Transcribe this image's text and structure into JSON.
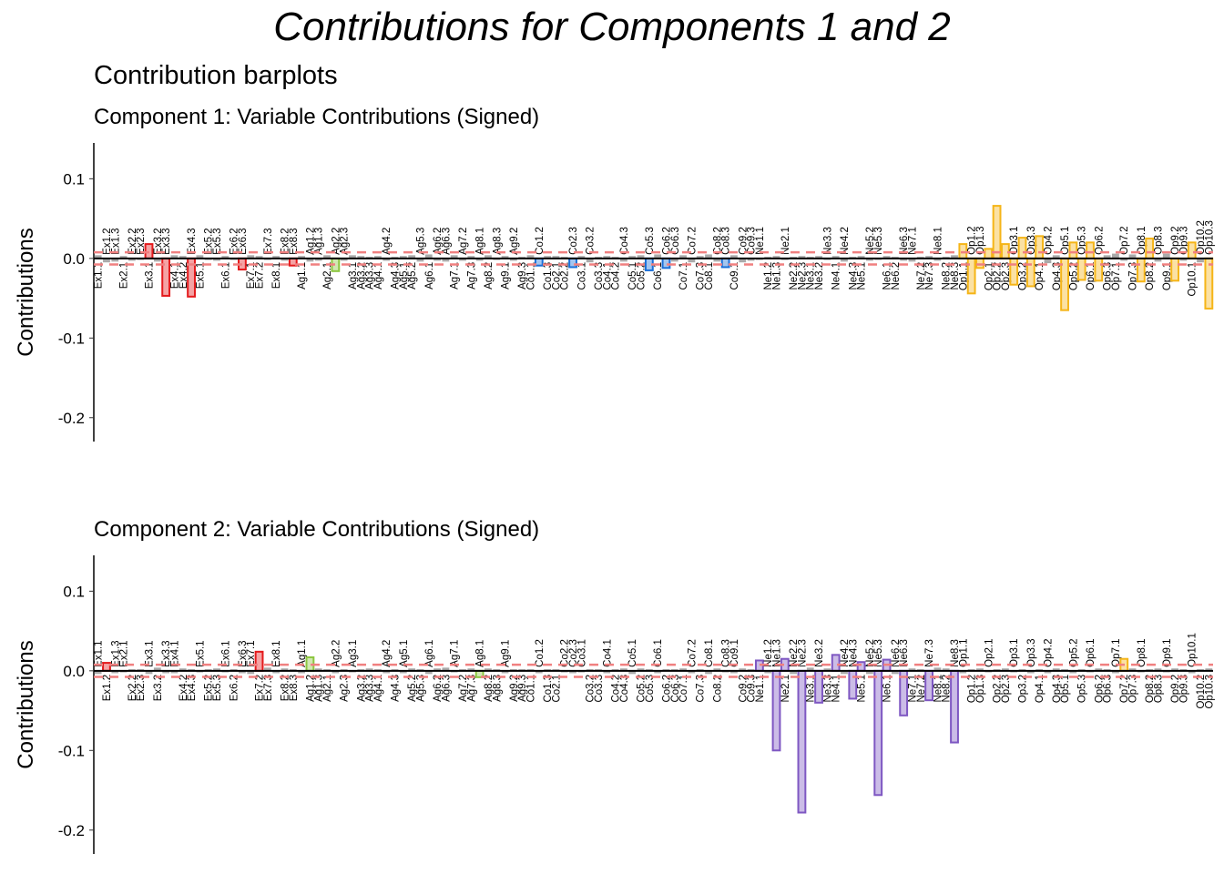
{
  "title": "Contributions for Components 1 and 2",
  "subtitle": "Contribution barplots",
  "chart_data": [
    {
      "type": "bar",
      "title": "Component 1: Variable Contributions (Signed)",
      "ylabel": "Contributions",
      "categories": [
        "Ex1.1",
        "Ex1.2",
        "Ex1.3",
        "Ex2.1",
        "Ex2.2",
        "Ex2.3",
        "Ex3.1",
        "Ex3.2",
        "Ex3.3",
        "Ex4.1",
        "Ex4.2",
        "Ex4.3",
        "Ex5.1",
        "Ex5.2",
        "Ex5.3",
        "Ex6.1",
        "Ex6.2",
        "Ex6.3",
        "Ex7.1",
        "Ex7.2",
        "Ex7.3",
        "Ex8.1",
        "Ex8.2",
        "Ex8.3",
        "Ag1.1",
        "Ag1.2",
        "Ag1.3",
        "Ag2.1",
        "Ag2.2",
        "Ag2.3",
        "Ag3.1",
        "Ag3.2",
        "Ag3.3",
        "Ag4.1",
        "Ag4.2",
        "Ag4.3",
        "Ag5.1",
        "Ag5.2",
        "Ag5.3",
        "Ag6.1",
        "Ag6.2",
        "Ag6.3",
        "Ag7.1",
        "Ag7.2",
        "Ag7.3",
        "Ag8.1",
        "Ag8.2",
        "Ag8.3",
        "Ag9.1",
        "Ag9.2",
        "Ag9.3",
        "Co1.1",
        "Co1.2",
        "Co1.3",
        "Co2.1",
        "Co2.2",
        "Co2.3",
        "Co3.1",
        "Co3.2",
        "Co3.3",
        "Co4.1",
        "Co4.2",
        "Co4.3",
        "Co5.1",
        "Co5.2",
        "Co5.3",
        "Co6.1",
        "Co6.2",
        "Co6.3",
        "Co7.1",
        "Co7.2",
        "Co7.3",
        "Co8.1",
        "Co8.2",
        "Co8.3",
        "Co9.1",
        "Co9.2",
        "Co9.3",
        "Ne1.1",
        "Ne1.2",
        "Ne1.3",
        "Ne2.1",
        "Ne2.2",
        "Ne2.3",
        "Ne3.1",
        "Ne3.2",
        "Ne3.3",
        "Ne4.1",
        "Ne4.2",
        "Ne4.3",
        "Ne5.1",
        "Ne5.2",
        "Ne5.3",
        "Ne6.1",
        "Ne6.2",
        "Ne6.3",
        "Ne7.1",
        "Ne7.2",
        "Ne7.3",
        "Ne8.1",
        "Ne8.2",
        "Ne8.3",
        "Op1.1",
        "Op1.2",
        "Op1.3",
        "Op2.1",
        "Op2.2",
        "Op2.3",
        "Op3.1",
        "Op3.2",
        "Op3.3",
        "Op4.1",
        "Op4.2",
        "Op4.3",
        "Op5.1",
        "Op5.2",
        "Op5.3",
        "Op6.1",
        "Op6.2",
        "Op6.3",
        "Op7.1",
        "Op7.2",
        "Op7.3",
        "Op8.1",
        "Op8.2",
        "Op8.3",
        "Op9.1",
        "Op9.2",
        "Op9.3",
        "Op10.1",
        "Op10.2",
        "Op10.3"
      ],
      "values": [
        0.004,
        -0.005,
        -0.004,
        0.003,
        -0.003,
        -0.002,
        0.018,
        -0.004,
        -0.047,
        0.004,
        0.003,
        -0.048,
        0.004,
        -0.002,
        -0.003,
        0.003,
        -0.002,
        -0.014,
        0.004,
        0.003,
        -0.002,
        0.003,
        -0.003,
        -0.009,
        0.003,
        -0.004,
        -0.003,
        0.004,
        -0.016,
        -0.003,
        0.004,
        0.003,
        0.002,
        0.003,
        -0.003,
        0.002,
        0.003,
        0.004,
        -0.004,
        0.005,
        -0.003,
        -0.004,
        0.004,
        -0.003,
        0.003,
        -0.003,
        0.004,
        -0.002,
        0.003,
        -0.003,
        0.002,
        0.004,
        -0.009,
        0.003,
        0.003,
        0.002,
        -0.011,
        0.003,
        -0.005,
        0.002,
        0.003,
        0.002,
        -0.004,
        0.003,
        0.004,
        -0.015,
        0.005,
        -0.012,
        -0.004,
        0.004,
        -0.005,
        0.003,
        0.005,
        -0.004,
        -0.011,
        0.004,
        -0.005,
        -0.003,
        -0.002,
        0.002,
        0.003,
        -0.002,
        0.002,
        0.003,
        0.002,
        0.003,
        -0.002,
        0.003,
        -0.004,
        0.002,
        0.003,
        -0.003,
        -0.002,
        0.003,
        0.002,
        -0.003,
        -0.004,
        0.002,
        0.003,
        -0.003,
        0.002,
        0.004,
        0.018,
        -0.044,
        -0.012,
        0.012,
        0.066,
        0.018,
        -0.033,
        0.026,
        -0.035,
        0.028,
        -0.006,
        0.004,
        -0.065,
        0.02,
        -0.027,
        0.02,
        -0.028,
        0.004,
        0.006,
        -0.003,
        0.005,
        -0.029,
        0.025,
        -0.004,
        0.006,
        -0.028,
        -0.003,
        0.02,
        -0.005,
        -0.063
      ],
      "ylim": [
        -0.23,
        0.145
      ],
      "yticks": [
        {
          "value": 0.1,
          "label": "0.1"
        },
        {
          "value": 0,
          "label": "0.0"
        },
        {
          "value": -0.1,
          "label": "-0.1"
        },
        {
          "value": -0.2,
          "label": "-0.2"
        }
      ],
      "hlines": [
        0.0076,
        -0.0076
      ],
      "group_colors": {
        "Ex": "#e41a1c",
        "Ag": "#8cc63f",
        "Co": "#1a6fd8",
        "Ne": "#7e57c2",
        "Op": "#f5b518"
      },
      "color": "#aaaaaa"
    },
    {
      "type": "bar",
      "title": "Component 2: Variable Contributions (Signed)",
      "ylabel": "Contributions",
      "categories": [
        "Ex1.1",
        "Ex1.2",
        "Ex1.3",
        "Ex2.1",
        "Ex2.2",
        "Ex2.3",
        "Ex3.1",
        "Ex3.2",
        "Ex3.3",
        "Ex4.1",
        "Ex4.2",
        "Ex4.3",
        "Ex5.1",
        "Ex5.2",
        "Ex5.3",
        "Ex6.1",
        "Ex6.2",
        "Ex6.3",
        "Ex7.1",
        "Ex7.2",
        "Ex7.3",
        "Ex8.1",
        "Ex8.2",
        "Ex8.3",
        "Ag1.1",
        "Ag1.2",
        "Ag1.3",
        "Ag2.1",
        "Ag2.2",
        "Ag2.3",
        "Ag3.1",
        "Ag3.2",
        "Ag3.3",
        "Ag4.1",
        "Ag4.2",
        "Ag4.3",
        "Ag5.1",
        "Ag5.2",
        "Ag5.3",
        "Ag6.1",
        "Ag6.2",
        "Ag6.3",
        "Ag7.1",
        "Ag7.2",
        "Ag7.3",
        "Ag8.1",
        "Ag8.2",
        "Ag8.3",
        "Ag9.1",
        "Ag9.2",
        "Ag9.3",
        "Co1.1",
        "Co1.2",
        "Co1.3",
        "Co2.1",
        "Co2.2",
        "Co2.3",
        "Co3.1",
        "Co3.2",
        "Co3.3",
        "Co4.1",
        "Co4.2",
        "Co4.3",
        "Co5.1",
        "Co5.2",
        "Co5.3",
        "Co6.1",
        "Co6.2",
        "Co6.3",
        "Co7.1",
        "Co7.2",
        "Co7.3",
        "Co8.1",
        "Co8.2",
        "Co8.3",
        "Co9.1",
        "Co9.2",
        "Co9.3",
        "Ne1.1",
        "Ne1.2",
        "Ne1.3",
        "Ne2.1",
        "Ne2.2",
        "Ne2.3",
        "Ne3.1",
        "Ne3.2",
        "Ne3.3",
        "Ne4.1",
        "Ne4.2",
        "Ne4.3",
        "Ne5.1",
        "Ne5.2",
        "Ne5.3",
        "Ne6.1",
        "Ne6.2",
        "Ne6.3",
        "Ne7.1",
        "Ne7.2",
        "Ne7.3",
        "Ne8.1",
        "Ne8.2",
        "Ne8.3",
        "Op1.1",
        "Op1.2",
        "Op1.3",
        "Op2.1",
        "Op2.2",
        "Op2.3",
        "Op3.1",
        "Op3.2",
        "Op3.3",
        "Op4.1",
        "Op4.2",
        "Op4.3",
        "Op5.1",
        "Op5.2",
        "Op5.3",
        "Op6.1",
        "Op6.2",
        "Op6.3",
        "Op7.1",
        "Op7.2",
        "Op7.3",
        "Op8.1",
        "Op8.2",
        "Op8.3",
        "Op9.1",
        "Op9.2",
        "Op9.3",
        "Op10.1",
        "Op10.2",
        "Op10.3"
      ],
      "values": [
        -0.004,
        0.01,
        -0.003,
        -0.002,
        0.002,
        0.002,
        -0.004,
        0.004,
        -0.003,
        -0.003,
        0.003,
        0.002,
        -0.002,
        0.002,
        0.003,
        -0.002,
        0.002,
        -0.003,
        -0.004,
        0.024,
        0.004,
        -0.003,
        0.003,
        0.002,
        -0.003,
        0.017,
        0.003,
        0.002,
        -0.003,
        0.002,
        -0.002,
        0.002,
        0.003,
        0.002,
        -0.003,
        0.002,
        -0.003,
        0.003,
        0.002,
        -0.004,
        0.003,
        0.004,
        -0.002,
        0.002,
        0.003,
        -0.008,
        0.003,
        0.002,
        -0.003,
        0.002,
        0.002,
        0.002,
        -0.003,
        0.002,
        0.002,
        -0.002,
        -0.003,
        -0.002,
        0.002,
        0.002,
        -0.003,
        0.002,
        0.003,
        -0.004,
        0.003,
        0.002,
        -0.003,
        0.002,
        0.002,
        0.003,
        -0.003,
        0.002,
        -0.004,
        0.003,
        -0.002,
        -0.003,
        0.003,
        0.002,
        0.013,
        -0.003,
        -0.1,
        0.015,
        -0.004,
        -0.178,
        0.004,
        -0.04,
        0.003,
        0.02,
        -0.004,
        -0.035,
        0.011,
        -0.004,
        -0.156,
        0.014,
        -0.004,
        -0.056,
        0.003,
        0.002,
        -0.037,
        0.004,
        0.003,
        -0.09,
        -0.003,
        0.002,
        0.003,
        -0.002,
        0.002,
        0.003,
        -0.002,
        0.002,
        -0.003,
        0.002,
        -0.003,
        0.003,
        0.002,
        -0.003,
        0.002,
        -0.002,
        0.003,
        0.002,
        -0.003,
        0.015,
        0.003,
        -0.002,
        0.002,
        0.003,
        -0.002,
        0.003,
        0.002,
        -0.003,
        0.002,
        0.003
      ],
      "ylim": [
        -0.23,
        0.145
      ],
      "yticks": [
        {
          "value": 0.1,
          "label": "0.1"
        },
        {
          "value": 0,
          "label": "0.0"
        },
        {
          "value": -0.1,
          "label": "-0.1"
        },
        {
          "value": -0.2,
          "label": "-0.2"
        }
      ],
      "hlines": [
        0.0076,
        -0.0076
      ],
      "group_colors": {
        "Ex": "#e41a1c",
        "Ag": "#8cc63f",
        "Co": "#1a6fd8",
        "Ne": "#7e57c2",
        "Op": "#f5b518"
      },
      "color": "#aaaaaa"
    }
  ]
}
